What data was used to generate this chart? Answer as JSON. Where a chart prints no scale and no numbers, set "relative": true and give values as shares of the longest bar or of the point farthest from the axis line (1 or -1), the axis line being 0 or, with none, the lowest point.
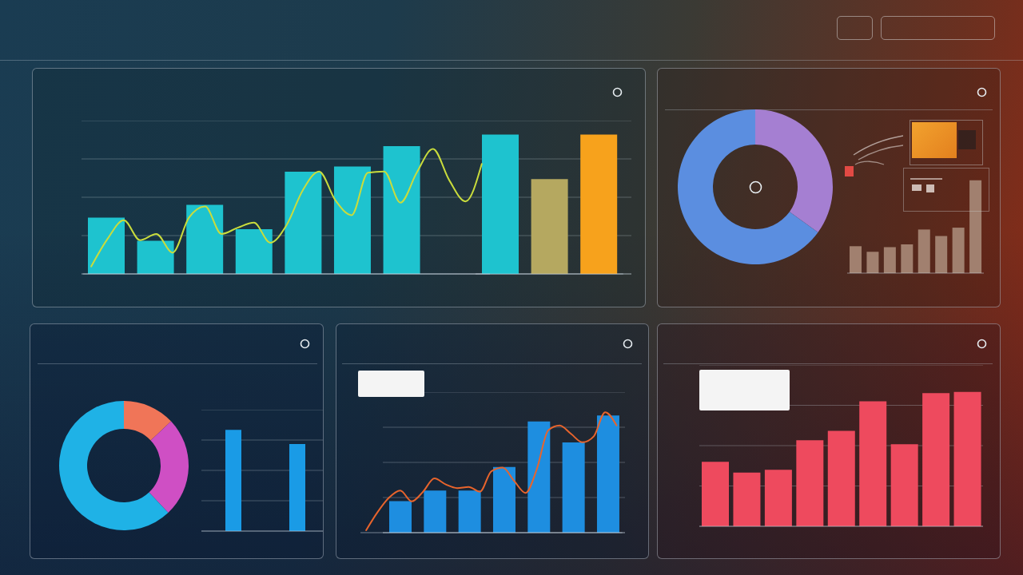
{
  "chart_data": [
    {
      "type": "bar",
      "relative": true,
      "grid": "y",
      "categories": [
        null,
        null,
        null,
        null,
        null,
        null,
        null
      ],
      "values": [
        0.44,
        0.26,
        0.54,
        0.35,
        0.8,
        0.84,
        1
      ],
      "color": "#1ec3cf"
    },
    {
      "type": "bar",
      "relative": true,
      "categories": [
        null,
        null,
        null
      ],
      "values": [
        1,
        0.68,
        1
      ],
      "colors": [
        "#1ec3cf",
        "#b5a860",
        "#f7a21c"
      ]
    },
    {
      "type": "line",
      "relative": true,
      "color": "#c9dc3c",
      "categories": [
        null,
        null,
        null,
        null,
        null,
        null,
        null,
        null,
        null,
        null,
        null,
        null,
        null,
        null,
        null,
        null,
        null,
        null,
        null,
        null,
        null,
        null,
        null,
        null,
        null
      ],
      "values": [
        0.06,
        0.28,
        0.43,
        0.27,
        0.32,
        0.17,
        0.45,
        0.54,
        0.32,
        0.37,
        0.41,
        0.25,
        0.39,
        0.67,
        0.82,
        0.59,
        0.47,
        0.81,
        0.82,
        0.57,
        0.81,
        1,
        0.75,
        0.58,
        0.88
      ]
    },
    {
      "type": "donut",
      "categories": [
        null,
        null
      ],
      "values": [
        35,
        65
      ],
      "colors": [
        "#a57fd2",
        "#5b8ee0"
      ]
    },
    {
      "type": "bar",
      "relative": true,
      "categories": [
        null,
        null,
        null,
        null,
        null,
        null,
        null,
        null
      ],
      "values": [
        0.29,
        0.23,
        0.28,
        0.31,
        0.47,
        0.4,
        0.49,
        1
      ],
      "color": "#a1806f"
    },
    {
      "type": "donut",
      "categories": [
        null,
        null,
        null
      ],
      "values": [
        13,
        25,
        62
      ],
      "colors": [
        "#f07558",
        "#cf4fc4",
        "#1fb2e6"
      ]
    },
    {
      "type": "bar",
      "relative": true,
      "grid": "y",
      "categories": [
        null,
        null
      ],
      "values": [
        1,
        0.86
      ],
      "color": "#1a9be6"
    },
    {
      "type": "bar",
      "relative": true,
      "grid": "y",
      "categories": [
        null,
        null,
        null,
        null,
        null,
        null,
        null
      ],
      "values": [
        0.27,
        0.36,
        0.36,
        0.56,
        0.95,
        0.77,
        1
      ],
      "color": "#1e8ee0"
    },
    {
      "type": "line",
      "relative": true,
      "color": "#e8642c",
      "categories": [
        null,
        null,
        null,
        null,
        null,
        null,
        null,
        null,
        null,
        null,
        null,
        null,
        null,
        null,
        null,
        null,
        null,
        null,
        null,
        null,
        null,
        null,
        null
      ],
      "values": [
        0.02,
        0.17,
        0.29,
        0.35,
        0.26,
        0.34,
        0.45,
        0.4,
        0.37,
        0.38,
        0.34,
        0.51,
        0.54,
        0.43,
        0.33,
        0.53,
        0.85,
        0.89,
        0.82,
        0.75,
        0.8,
        1,
        0.89
      ]
    },
    {
      "type": "bar",
      "relative": true,
      "grid": "y",
      "categories": [
        null,
        null,
        null,
        null,
        null,
        null,
        null,
        null,
        null
      ],
      "values": [
        0.48,
        0.4,
        0.42,
        0.64,
        0.71,
        0.93,
        0.61,
        0.99,
        1
      ],
      "color": "#ee4a5e"
    }
  ]
}
